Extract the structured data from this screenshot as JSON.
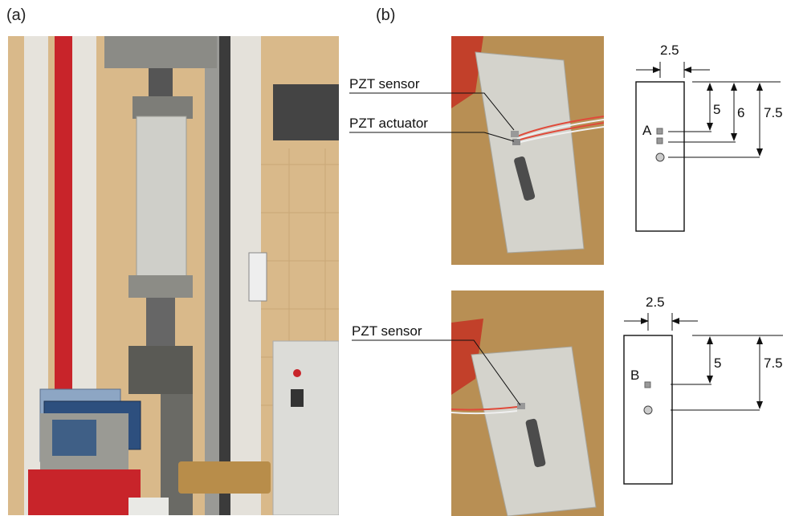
{
  "panels": {
    "a": "(a)",
    "b": "(b)"
  },
  "callouts": {
    "top_sensor": "PZT sensor",
    "top_actuator": "PZT actuator",
    "bottom_sensor": "PZT sensor"
  },
  "diagram_top": {
    "width_dim": "2.5",
    "point_label": "A",
    "dims": [
      "5",
      "6",
      "7.5"
    ]
  },
  "diagram_bottom": {
    "width_dim": "2.5",
    "point_label": "B",
    "dims": [
      "5",
      "7.5"
    ]
  },
  "colors": {
    "frame_red": "#c8242a",
    "concrete": "#cfcfc9",
    "floor": "#b88d4a"
  }
}
